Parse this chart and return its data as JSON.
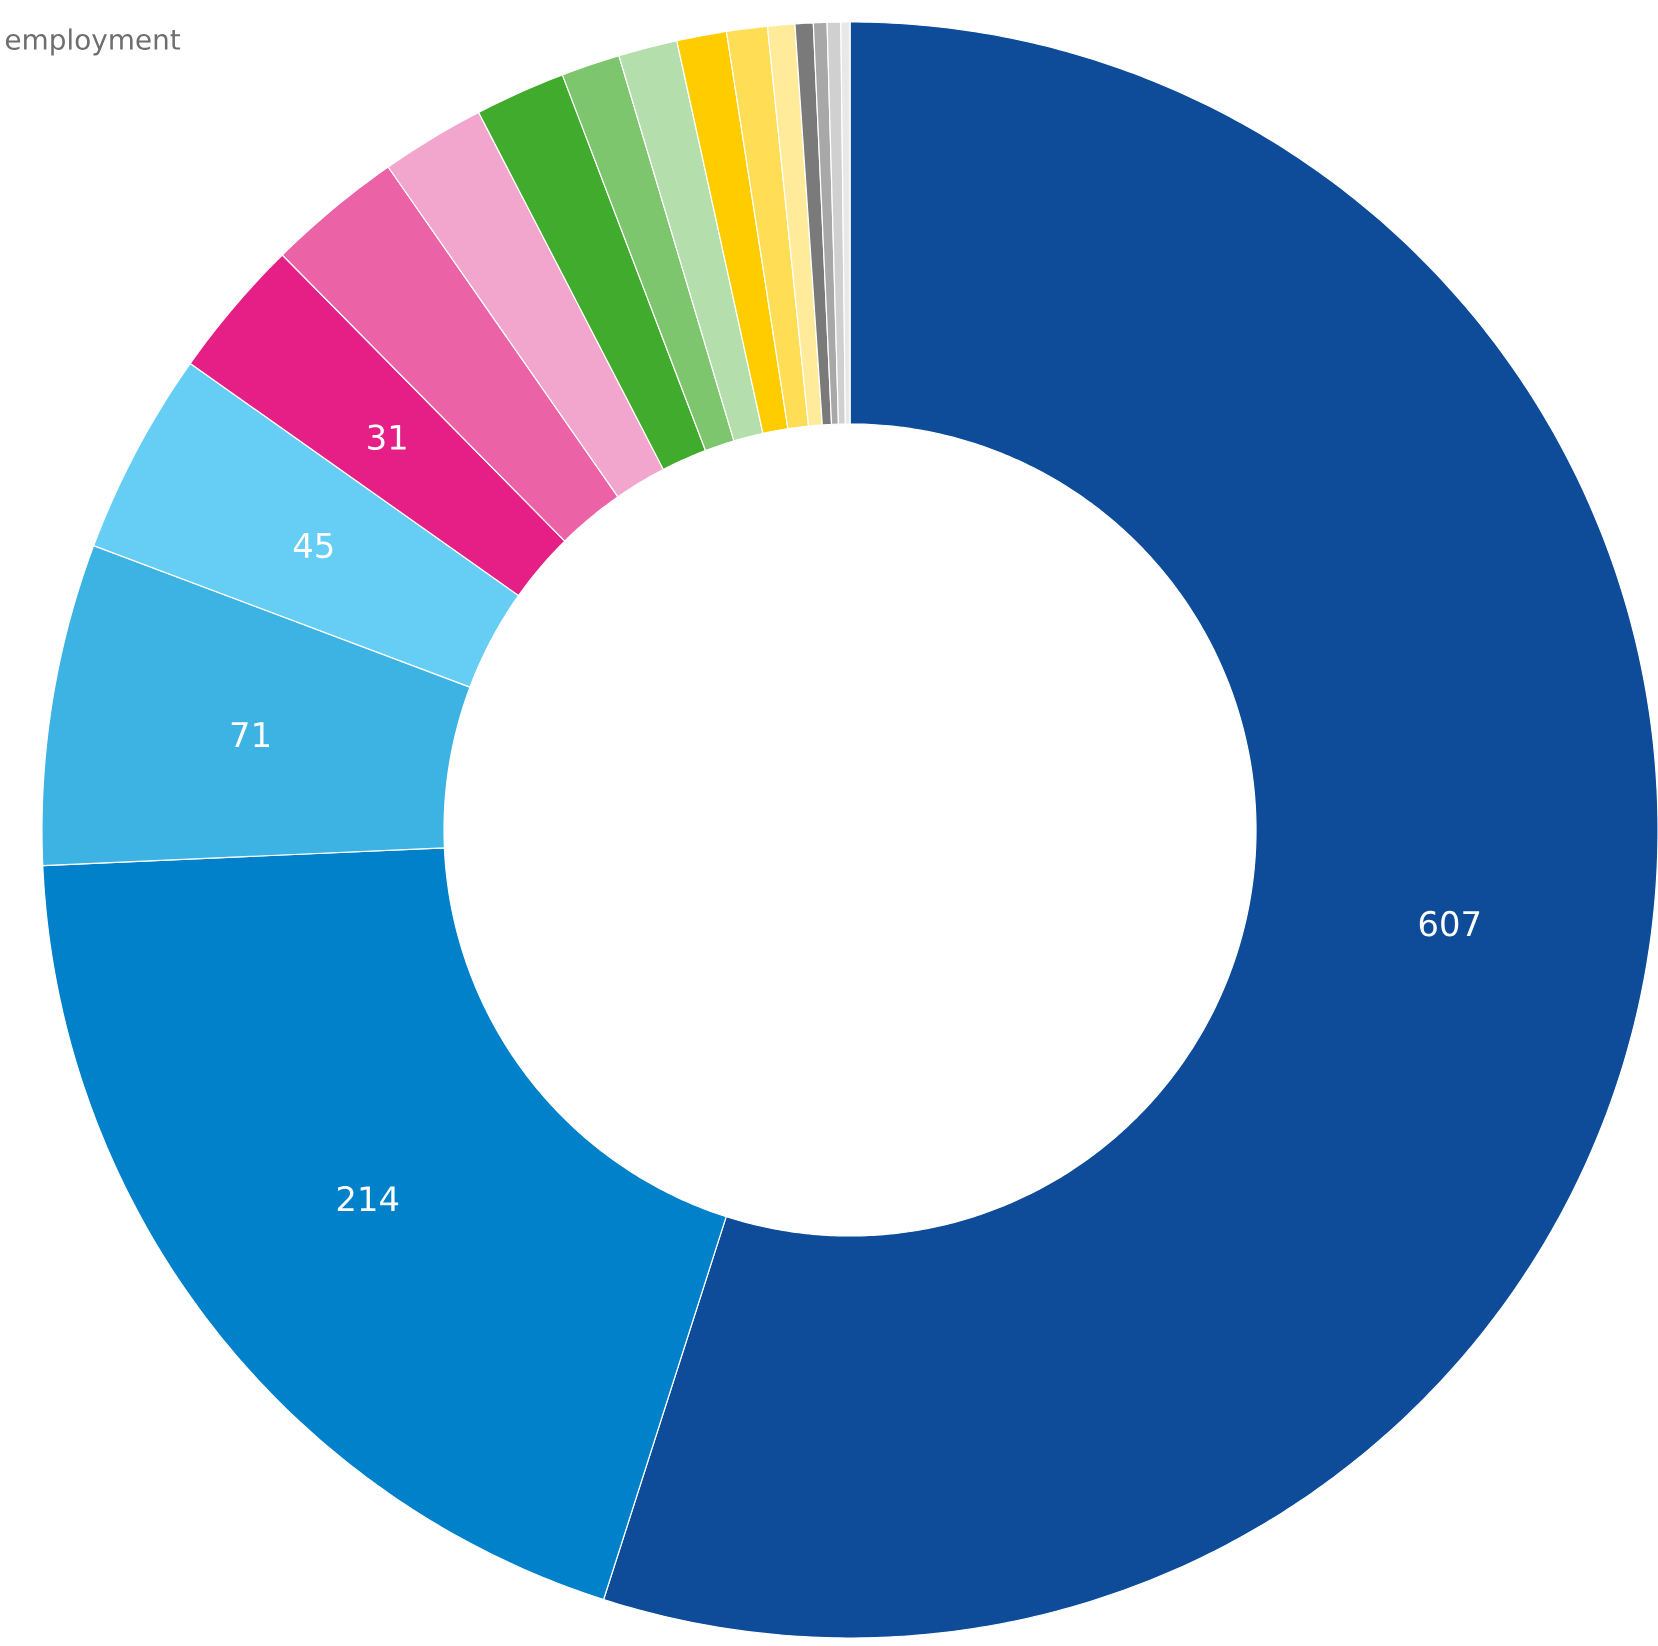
{
  "chart_data": {
    "type": "donut",
    "annotations": [
      "employment"
    ],
    "categories": [
      null,
      null,
      null,
      null,
      null,
      null,
      null,
      null,
      null,
      null,
      null,
      null,
      null,
      null,
      null,
      null,
      null
    ],
    "values": [
      607,
      214,
      71,
      45,
      31,
      30,
      23,
      20,
      13,
      13,
      11,
      9,
      6,
      4,
      3,
      3,
      2
    ],
    "value_labels": [
      "607",
      "214",
      "71",
      "45",
      "31",
      null,
      null,
      null,
      null,
      null,
      null,
      null,
      null,
      null,
      null,
      null,
      null
    ],
    "colors": [
      "#0e4c9a",
      "#0081c9",
      "#3db3e3",
      "#66cef5",
      "#e61f86",
      "#ec62a6",
      "#f3a6cd",
      "#41ab2d",
      "#7ec66d",
      "#b4deab",
      "#ffcc00",
      "#ffdd55",
      "#ffeb99",
      "#7a7a7a",
      "#a8a8a8",
      "#d0d0d0",
      "#e8e8e8"
    ]
  }
}
